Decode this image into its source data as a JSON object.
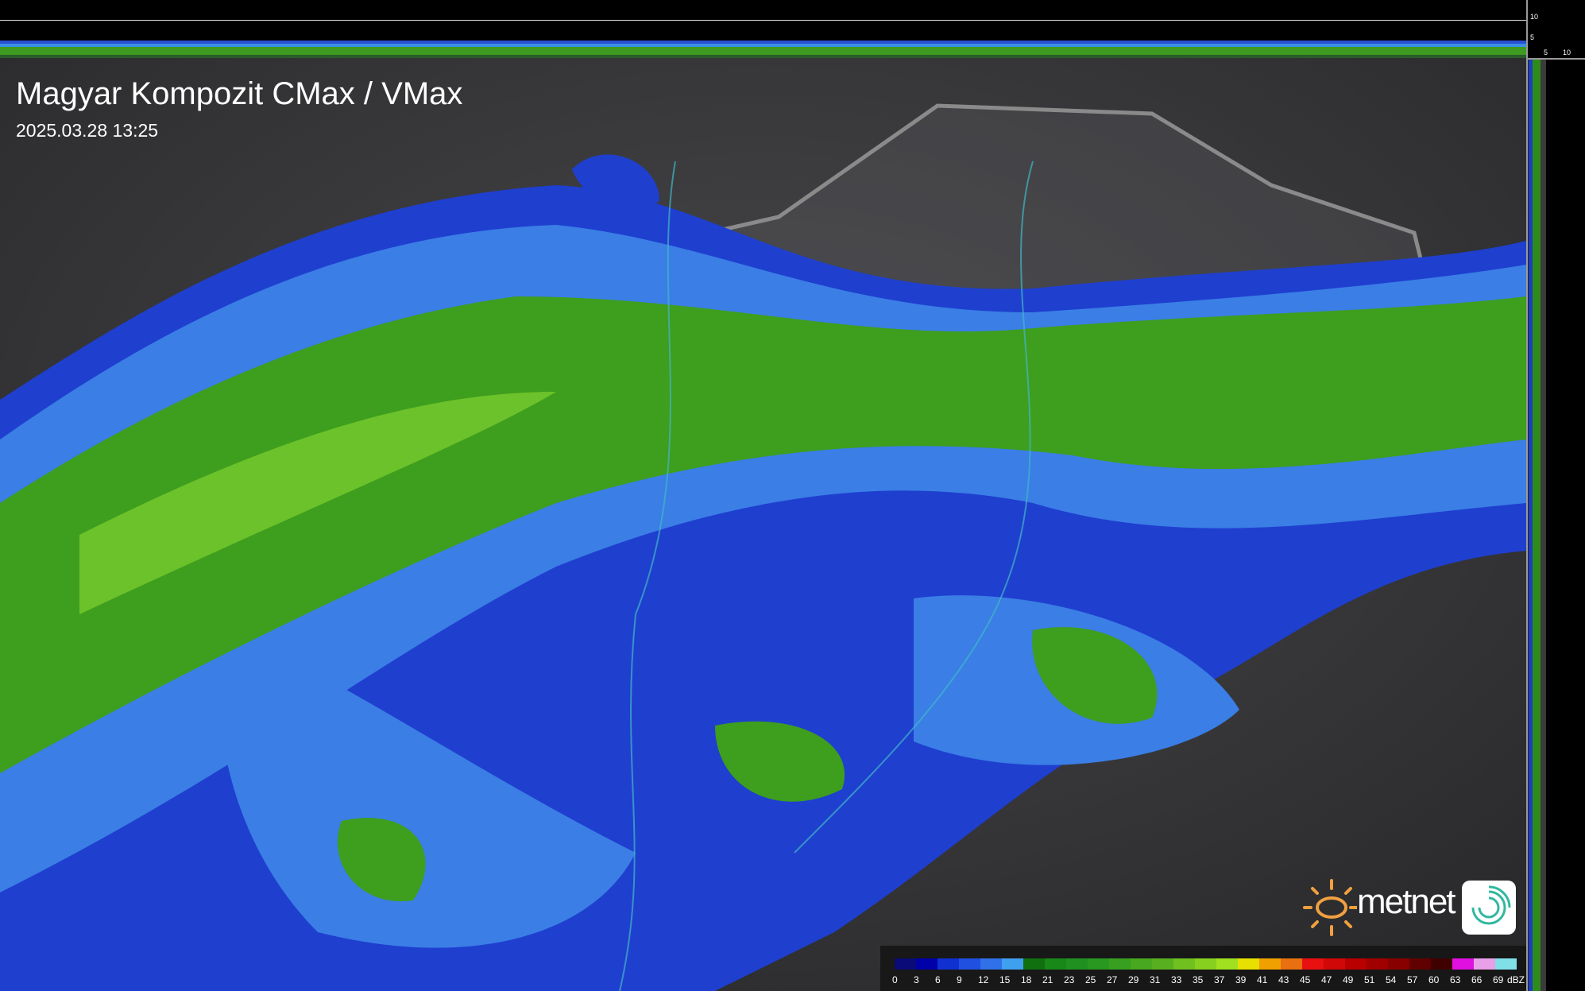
{
  "header": {
    "title": "Magyar Kompozit CMax / VMax",
    "timestamp": "2025.03.28 13:25"
  },
  "side_scale": {
    "vertical": [
      "10",
      "5"
    ],
    "horizontal": [
      "5",
      "10"
    ]
  },
  "logo": {
    "text": "metnet",
    "sun_color": "#f0a040",
    "swirl_color": "#30b8a0"
  },
  "legend": {
    "unit": "dBZ",
    "labels": [
      "0",
      "3",
      "6",
      "9",
      "12",
      "15",
      "18",
      "21",
      "23",
      "25",
      "27",
      "29",
      "31",
      "33",
      "35",
      "37",
      "39",
      "41",
      "43",
      "45",
      "47",
      "49",
      "51",
      "54",
      "57",
      "60",
      "63",
      "66",
      "69"
    ],
    "colors": [
      "#0a0a78",
      "#0000a8",
      "#1030d0",
      "#2050e0",
      "#3070e8",
      "#40a0f0",
      "#107010",
      "#188818",
      "#209020",
      "#289820",
      "#38a020",
      "#48a820",
      "#58b020",
      "#70c020",
      "#88d020",
      "#a0e020",
      "#e8e000",
      "#f0a000",
      "#e87010",
      "#e81010",
      "#d00808",
      "#b80000",
      "#a00000",
      "#880000",
      "#600000",
      "#400000",
      "#e010e0",
      "#e8a0e8",
      "#80e0e8"
    ]
  }
}
